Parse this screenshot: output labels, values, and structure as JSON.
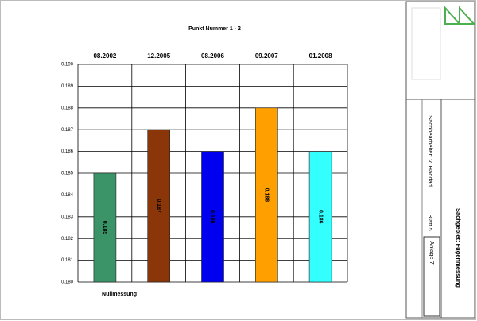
{
  "chart_data": {
    "type": "bar",
    "title": "Punkt Nummer 1 - 2",
    "x_label": "Nullmessung",
    "categories": [
      "08.2002",
      "12.2005",
      "08.2006",
      "09.2007",
      "01.2008"
    ],
    "values": [
      0.185,
      0.187,
      0.186,
      0.188,
      0.186
    ],
    "colors": [
      "#3a9468",
      "#8b3608",
      "#0000f0",
      "#ffa000",
      "#33ffff"
    ],
    "ylim": [
      0.18,
      0.19
    ],
    "yticks": [
      {
        "value": 0.18,
        "label": "0.180"
      },
      0.181,
      0.182,
      0.183,
      0.184,
      0.185,
      0.186,
      0.187,
      0.188,
      0.189,
      {
        "value": 0.19,
        "label": "0.190"
      }
    ],
    "grid": true
  },
  "title_block": {
    "subject": "Sachgebiet: Fugenmessung",
    "author": "Sachbearbeiter: V. Haddad",
    "attachment": "Anlage 7",
    "sheet": "Blatt 5"
  }
}
